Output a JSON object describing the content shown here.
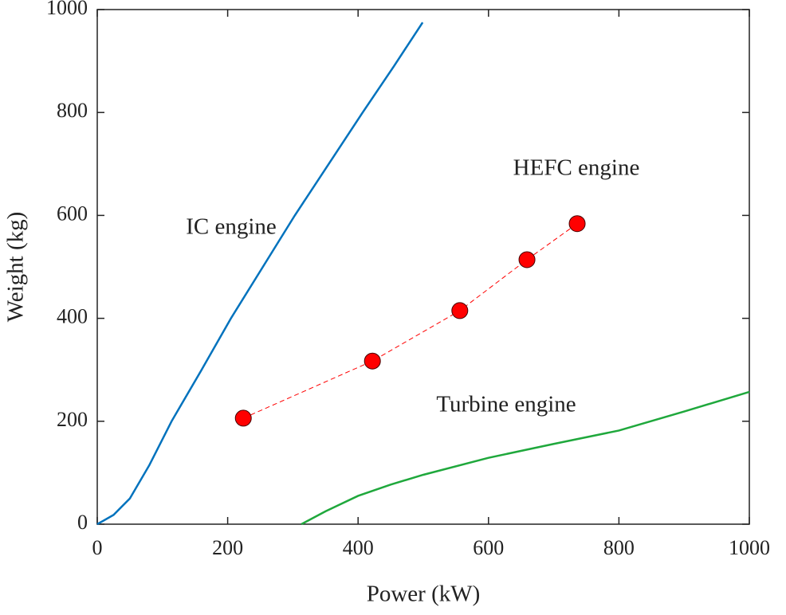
{
  "chart_data": {
    "type": "line",
    "xlabel": "Power (kW)",
    "ylabel": "Weight (kg)",
    "xlim": [
      0,
      1000
    ],
    "ylim": [
      0,
      1000
    ],
    "xticks": [
      0,
      200,
      400,
      600,
      800,
      1000
    ],
    "yticks": [
      0,
      200,
      400,
      600,
      800,
      1000
    ],
    "series": [
      {
        "name": "IC engine",
        "color": "#0072bd",
        "style": "solid",
        "x": [
          0,
          25,
          50,
          80,
          114,
          160,
          205,
          254,
          303,
          355,
          407,
          455,
          499
        ],
        "values": [
          0,
          18,
          50,
          115,
          200,
          300,
          400,
          500,
          600,
          700,
          800,
          890,
          975
        ]
      },
      {
        "name": "Turbine engine",
        "color": "#1fa83c",
        "style": "solid",
        "x": [
          313,
          350,
          400,
          450,
          500,
          600,
          700,
          800,
          900,
          1000
        ],
        "values": [
          0,
          25,
          55,
          77,
          96,
          129,
          156,
          182,
          219,
          257
        ]
      },
      {
        "name": "HEFC engine",
        "color": "#ff0000",
        "style": "dashed-markers",
        "x": [
          224,
          422,
          556,
          659,
          736
        ],
        "values": [
          206,
          317,
          415,
          514,
          584
        ]
      }
    ]
  }
}
